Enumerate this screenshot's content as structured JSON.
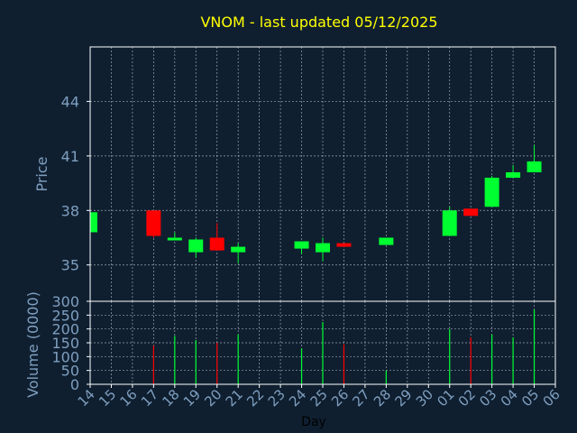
{
  "title": "VNOM - last updated 05/12/2025",
  "colors": {
    "background": "#0f1f30",
    "up": "#00ff30",
    "down": "#ff0000",
    "title": "#ffff00",
    "axis_text": "#7f9fbf",
    "grid": "#c8d2dc",
    "frame": "#ffffff"
  },
  "chart_data": [
    {
      "type": "candlestick",
      "title": "VNOM - last updated 05/12/2025",
      "ylabel": "Price",
      "ylim": [
        33,
        47
      ],
      "yticks": [
        35,
        38,
        41,
        44
      ],
      "grid": true,
      "x": [
        "14",
        "15",
        "16",
        "17",
        "18",
        "19",
        "20",
        "21",
        "22",
        "23",
        "24",
        "25",
        "26",
        "27",
        "28",
        "29",
        "30",
        "01",
        "02",
        "03",
        "04",
        "05",
        "06"
      ],
      "candles": [
        {
          "x": "14",
          "open": 36.8,
          "close": 37.9,
          "high": 37.9,
          "low": 36.8
        },
        {
          "x": "17",
          "open": 38.0,
          "close": 36.6,
          "high": 38.0,
          "low": 36.5
        },
        {
          "x": "18",
          "open": 36.4,
          "close": 36.5,
          "high": 36.8,
          "low": 36.4
        },
        {
          "x": "19",
          "open": 35.7,
          "close": 36.4,
          "high": 36.5,
          "low": 35.4
        },
        {
          "x": "20",
          "open": 36.5,
          "close": 35.8,
          "high": 37.3,
          "low": 35.8
        },
        {
          "x": "21",
          "open": 35.7,
          "close": 36.0,
          "high": 36.2,
          "low": 35.1
        },
        {
          "x": "24",
          "open": 35.9,
          "close": 36.3,
          "high": 36.3,
          "low": 35.6
        },
        {
          "x": "25",
          "open": 35.7,
          "close": 36.2,
          "high": 36.5,
          "low": 35.2
        },
        {
          "x": "26",
          "open": 36.2,
          "close": 36.0,
          "high": 36.2,
          "low": 36.0
        },
        {
          "x": "28",
          "open": 36.1,
          "close": 36.5,
          "high": 36.5,
          "low": 36.1
        },
        {
          "x": "01",
          "open": 36.6,
          "close": 38.0,
          "high": 38.2,
          "low": 36.6
        },
        {
          "x": "02",
          "open": 38.1,
          "close": 37.7,
          "high": 38.1,
          "low": 37.7
        },
        {
          "x": "03",
          "open": 38.2,
          "close": 39.8,
          "high": 39.9,
          "low": 38.2
        },
        {
          "x": "04",
          "open": 39.8,
          "close": 40.1,
          "high": 40.5,
          "low": 39.8
        },
        {
          "x": "05",
          "open": 40.1,
          "close": 40.7,
          "high": 41.6,
          "low": 40.1
        }
      ]
    },
    {
      "type": "bar",
      "ylabel": "Volume (0000)",
      "xlabel": "Day",
      "ylim": [
        0,
        300
      ],
      "yticks": [
        0,
        50,
        100,
        150,
        200,
        250,
        300
      ],
      "grid": true,
      "categories": [
        "14",
        "15",
        "16",
        "17",
        "18",
        "19",
        "20",
        "21",
        "22",
        "23",
        "24",
        "25",
        "26",
        "27",
        "28",
        "29",
        "30",
        "01",
        "02",
        "03",
        "04",
        "05",
        "06"
      ],
      "values": [
        null,
        null,
        null,
        140,
        175,
        160,
        150,
        180,
        null,
        null,
        130,
        225,
        145,
        null,
        50,
        null,
        null,
        200,
        170,
        180,
        170,
        270,
        null
      ],
      "direction": [
        null,
        null,
        null,
        "down",
        "up",
        "up",
        "down",
        "up",
        null,
        null,
        "up",
        "up",
        "down",
        null,
        "up",
        null,
        null,
        "up",
        "down",
        "up",
        "up",
        "up",
        null
      ]
    }
  ]
}
